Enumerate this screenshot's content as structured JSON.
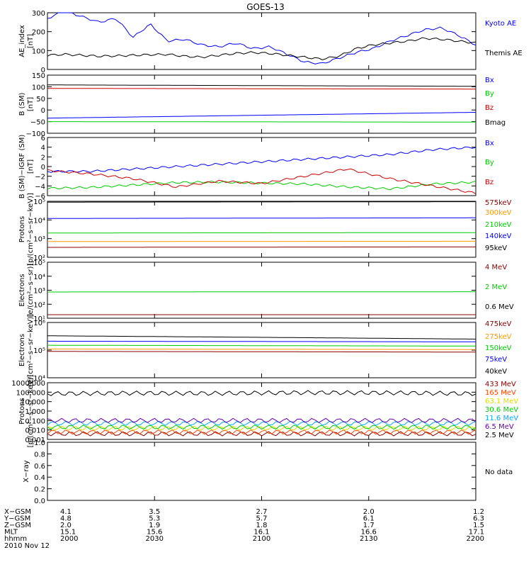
{
  "figure_title": "GOES-13",
  "chart_data": [
    {
      "type": "line",
      "ylabel": "AE_index\n[nT]",
      "ylim": [
        0,
        300
      ],
      "yscale": "linear",
      "yticks": [
        "0",
        "100",
        "200",
        "300"
      ],
      "series": [
        {
          "name": "Kyoto AE",
          "color": "#0000ff",
          "x": [
            0,
            0.04,
            0.08,
            0.12,
            0.16,
            0.2,
            0.24,
            0.28,
            0.32,
            0.36,
            0.4,
            0.44,
            0.48,
            0.52,
            0.56,
            0.6,
            0.64,
            0.68,
            0.72,
            0.76,
            0.8,
            0.84,
            0.88,
            0.92,
            0.96,
            1.0
          ],
          "values": [
            270,
            310,
            280,
            250,
            270,
            170,
            240,
            150,
            160,
            130,
            120,
            140,
            110,
            120,
            80,
            40,
            30,
            60,
            90,
            110,
            150,
            180,
            210,
            220,
            180,
            130
          ]
        },
        {
          "name": "Themis AE",
          "color": "#000000",
          "x": [
            0,
            0.04,
            0.08,
            0.12,
            0.16,
            0.2,
            0.24,
            0.28,
            0.32,
            0.36,
            0.4,
            0.44,
            0.48,
            0.52,
            0.56,
            0.6,
            0.64,
            0.68,
            0.72,
            0.76,
            0.8,
            0.84,
            0.88,
            0.92,
            0.96,
            1.0
          ],
          "values": [
            75,
            80,
            75,
            70,
            72,
            75,
            78,
            80,
            70,
            65,
            75,
            85,
            90,
            85,
            75,
            65,
            55,
            70,
            110,
            130,
            140,
            150,
            165,
            160,
            150,
            140
          ]
        }
      ]
    },
    {
      "type": "line",
      "ylabel": "B (SM)\n[nT]",
      "ylim": [
        -100,
        150
      ],
      "yscale": "linear",
      "yticks": [
        "−100",
        "−50",
        "0",
        "50",
        "100",
        "150"
      ],
      "series": [
        {
          "name": "Bx",
          "color": "#0000ff",
          "x": [
            0,
            1
          ],
          "values": [
            -35,
            -10
          ]
        },
        {
          "name": "By",
          "color": "#00cc00",
          "x": [
            0,
            1
          ],
          "values": [
            -50,
            -52
          ]
        },
        {
          "name": "Bz",
          "color": "#cc0000",
          "x": [
            0,
            1
          ],
          "values": [
            93,
            90
          ]
        },
        {
          "name": "Bmag",
          "color": "#000000",
          "x": [
            0,
            1
          ],
          "values": [
            108,
            102
          ]
        }
      ]
    },
    {
      "type": "line",
      "ylabel": "B (SM)−IGRF (SM)\n[nT]",
      "ylim": [
        -6,
        6
      ],
      "yscale": "linear",
      "yticks": [
        "−6",
        "−4",
        "−2",
        "0",
        "2",
        "4",
        "6"
      ],
      "series": [
        {
          "name": "Bx",
          "color": "#0000ff",
          "x": [
            0,
            0.1,
            0.2,
            0.3,
            0.4,
            0.5,
            0.6,
            0.7,
            0.8,
            0.9,
            1.0
          ],
          "values": [
            -1,
            -1,
            -0.5,
            0,
            0.5,
            1,
            1.5,
            2,
            2.5,
            3.5,
            4
          ]
        },
        {
          "name": "By",
          "color": "#00cc00",
          "x": [
            0,
            0.1,
            0.2,
            0.3,
            0.4,
            0.5,
            0.6,
            0.7,
            0.8,
            0.9,
            1.0
          ],
          "values": [
            -4.5,
            -4.3,
            -3.8,
            -3.3,
            -3.2,
            -3.4,
            -3.6,
            -4.2,
            -4.6,
            -3.6,
            -3.2
          ]
        },
        {
          "name": "Bz",
          "color": "#cc0000",
          "x": [
            0,
            0.1,
            0.2,
            0.3,
            0.4,
            0.5,
            0.6,
            0.7,
            0.8,
            0.9,
            1.0
          ],
          "values": [
            -0.8,
            -1.5,
            -2.5,
            -4.2,
            -3,
            -3.5,
            -2,
            -0.5,
            -2.5,
            -4,
            -5.5
          ]
        }
      ]
    },
    {
      "type": "line",
      "ylabel": "Protons\n[p/(cm²−s−sr−keV)]",
      "ylim": [
        100,
        100000
      ],
      "yscale": "log",
      "yticks": [
        "10²",
        "10³",
        "10⁴",
        "10⁵"
      ],
      "series": [
        {
          "name": "575keV",
          "color": "#8b0000",
          "x": [
            0,
            1
          ],
          "values": [
            340,
            360
          ]
        },
        {
          "name": "300keV",
          "color": "#ff9900",
          "x": [
            0,
            1
          ],
          "values": [
            700,
            720
          ]
        },
        {
          "name": "210keV",
          "color": "#00cc00",
          "x": [
            0,
            1
          ],
          "values": [
            2000,
            2100
          ]
        },
        {
          "name": "140keV",
          "color": "#0000ff",
          "x": [
            0,
            1
          ],
          "values": [
            12000,
            13000
          ]
        },
        {
          "name": "95keV",
          "color": "#000000",
          "x": [
            0,
            1
          ],
          "values": [
            90000,
            95000
          ]
        }
      ]
    },
    {
      "type": "line",
      "ylabel": "Electrons\n[e/(cm²−s−sr)]",
      "ylim": [
        10,
        100000
      ],
      "yscale": "log",
      "yticks": [
        "10¹",
        "10²",
        "10³",
        "10⁴",
        "10⁵"
      ],
      "series": [
        {
          "name": "4 MeV",
          "color": "#8b0000",
          "x": [
            0,
            1
          ],
          "values": [
            18,
            18
          ]
        },
        {
          "name": "2 MeV",
          "color": "#00cc00",
          "x": [
            0,
            1
          ],
          "values": [
            750,
            780
          ]
        },
        {
          "name": "0.6 MeV",
          "color": "#000000",
          "x": [
            0,
            1
          ],
          "values": [
            100000,
            100000
          ]
        }
      ]
    },
    {
      "type": "line",
      "ylabel": "Electrons\n[e/(cm²−s−sr−keV)]",
      "ylim": [
        10000,
        1000000
      ],
      "yscale": "log",
      "yticks": [
        "10⁴",
        "10⁵",
        "10⁶"
      ],
      "series": [
        {
          "name": "475keV",
          "color": "#8b0000",
          "x": [
            0,
            1
          ],
          "values": [
            90000,
            85000
          ]
        },
        {
          "name": "275keV",
          "color": "#ff9900",
          "x": [
            0,
            1
          ],
          "values": [
            110000,
            105000
          ]
        },
        {
          "name": "150keV",
          "color": "#00cc00",
          "x": [
            0,
            1
          ],
          "values": [
            150000,
            140000
          ]
        },
        {
          "name": "75keV",
          "color": "#0000ff",
          "x": [
            0,
            1
          ],
          "values": [
            210000,
            200000
          ]
        },
        {
          "name": "40keV",
          "color": "#000000",
          "x": [
            0,
            1
          ],
          "values": [
            330000,
            250000
          ]
        }
      ]
    },
    {
      "type": "line",
      "ylabel": "Protons\n[p/(cm²−s−sr−keV)]",
      "ylim": [
        0.001,
        1000
      ],
      "yscale": "log",
      "yticks": [
        "0.001",
        "0.010",
        "0.100",
        "1.000",
        "10.000",
        "100.000",
        "1000.000"
      ],
      "series": [
        {
          "name": "433 MeV",
          "color": "#8b0000",
          "x": [
            0,
            1
          ],
          "values": [
            0.004,
            0.004
          ]
        },
        {
          "name": "165 MeV",
          "color": "#ff4400",
          "x": [
            0,
            1
          ],
          "values": [
            0.006,
            0.006
          ]
        },
        {
          "name": "63.1 MeV",
          "color": "#dddd00",
          "x": [
            0,
            1
          ],
          "values": [
            0.015,
            0.015
          ]
        },
        {
          "name": "30.6 MeV",
          "color": "#00cc00",
          "x": [
            0,
            1
          ],
          "values": [
            0.02,
            0.02
          ]
        },
        {
          "name": "11.6 MeV",
          "color": "#00aaff",
          "x": [
            0,
            1
          ],
          "values": [
            0.05,
            0.05
          ]
        },
        {
          "name": "6.5 MeV",
          "color": "#6600aa",
          "x": [
            0,
            1
          ],
          "values": [
            0.1,
            0.1
          ]
        },
        {
          "name": "2.5 MeV",
          "color": "#000000",
          "x": [
            0,
            0.2,
            0.4,
            0.6,
            0.8,
            1.0
          ],
          "values": [
            70,
            80,
            75,
            90,
            85,
            70
          ]
        }
      ]
    },
    {
      "type": "line",
      "ylabel": "X−ray",
      "ylim": [
        0,
        1
      ],
      "yscale": "linear",
      "yticks": [
        "0.0",
        "0.2",
        "0.4",
        "0.6",
        "0.8",
        "1.0"
      ],
      "note": "No data",
      "series": []
    }
  ],
  "ephemeris": {
    "rows": [
      {
        "label": "X−GSM",
        "values": [
          "4.1",
          "3.5",
          "2.7",
          "2.0",
          "1.2"
        ]
      },
      {
        "label": "Y−GSM",
        "values": [
          "4.8",
          "5.3",
          "5.7",
          "6.1",
          "6.3"
        ]
      },
      {
        "label": "Z−GSM",
        "values": [
          "2.0",
          "1.9",
          "1.8",
          "1.7",
          "1.5"
        ]
      },
      {
        "label": "MLT",
        "values": [
          "15.1",
          "15.6",
          "16.1",
          "16.6",
          "17.1"
        ]
      },
      {
        "label": "hhmm",
        "values": [
          "2000",
          "2030",
          "2100",
          "2130",
          "2200"
        ]
      }
    ],
    "date": "2010 Nov 12"
  }
}
